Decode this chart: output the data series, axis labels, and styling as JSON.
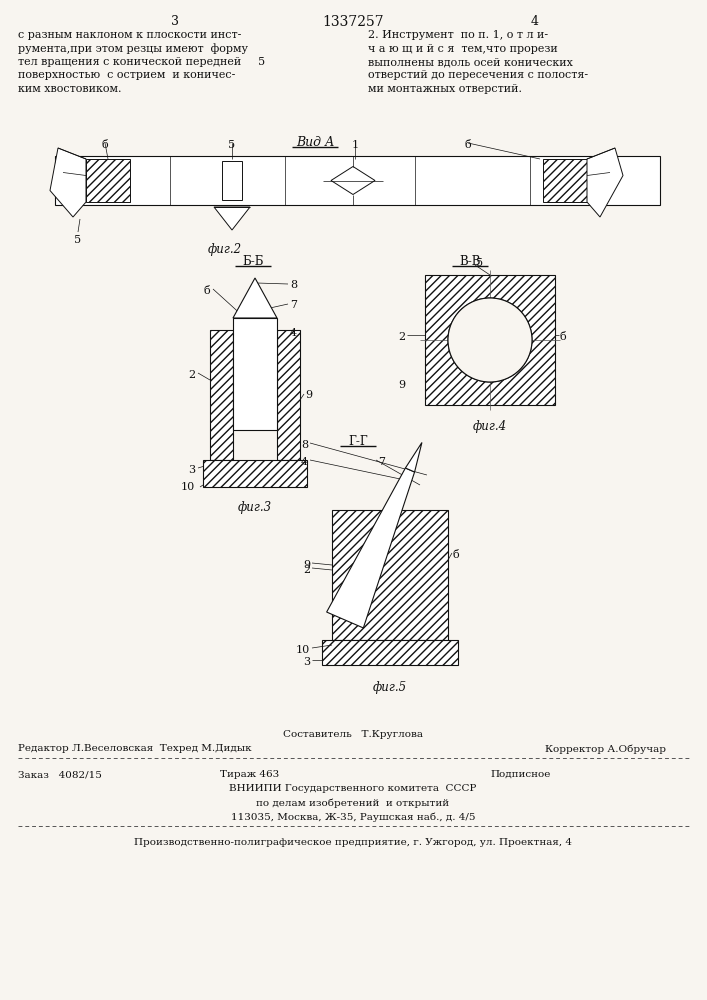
{
  "bg_color": "#ffffff",
  "page_bg": "#f8f5f0",
  "page_num_left": "3",
  "page_num_center": "1337257",
  "page_num_right": "4",
  "text_left_lines": [
    "с разным наклоном к плоскости инст-",
    "румента,при этом резцы имеют  форму",
    "тел вращения с конической передней",
    "поверхностью  с острием  и коничес-",
    "ким хвостовиком."
  ],
  "num_5": "5",
  "text_right_lines": [
    "2. Инструмент  по п. 1, о т л и-",
    "ч а ю щ и й с я  тем,что прорези",
    "выполнены вдоль осей конических",
    "отверстий до пересечения с полостя-",
    "ми монтажных отверстий."
  ],
  "vid_a": "Вид А",
  "fig2": "фиг.2",
  "fig3": "фиг.3",
  "fig4": "фиг.4",
  "fig5": "фиг.5",
  "bb": "Б-Б",
  "vv": "В-В",
  "gg": "Г-Г",
  "hatch_color": "#333333",
  "line_color": "#111111",
  "footer_sestavitel": "Составитель   Т.Круглова",
  "footer_editor": "Редактор Л.Веселовская  Техред М.Дидык",
  "footer_korrektor": "Корректор А.Обручар",
  "footer_zakaz": "Заказ   4082/15",
  "footer_tirazh": "Тираж 463",
  "footer_podpisnoe": "Подписное",
  "footer_vniipи": "ВНИИПИ Государственного комитета  СССР",
  "footer_dela": "по делам изобретений  и открытий",
  "footer_addr": "113035, Москва, Ж-35, Раушская наб., д. 4/5",
  "footer_prod": "Производственно-полиграфическое предприятие, г. Ужгород, ул. Проектная, 4"
}
